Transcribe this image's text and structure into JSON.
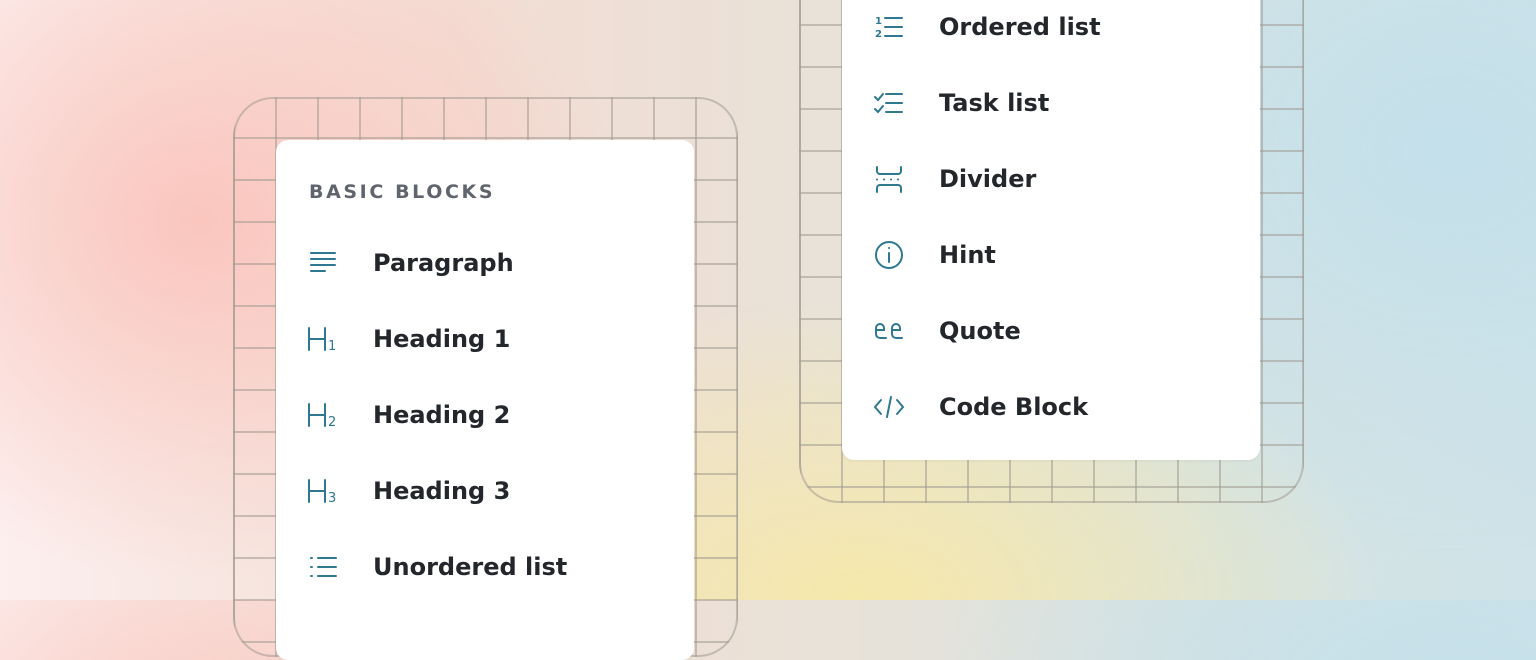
{
  "left_menu": {
    "section_title": "BASIC BLOCKS",
    "items": [
      {
        "label": "Paragraph",
        "icon": "paragraph-icon"
      },
      {
        "label": "Heading 1",
        "icon": "heading-1-icon"
      },
      {
        "label": "Heading 2",
        "icon": "heading-2-icon"
      },
      {
        "label": "Heading 3",
        "icon": "heading-3-icon"
      },
      {
        "label": "Unordered list",
        "icon": "unordered-list-icon"
      }
    ]
  },
  "right_menu": {
    "items": [
      {
        "label": "Ordered list",
        "icon": "ordered-list-icon"
      },
      {
        "label": "Task list",
        "icon": "task-list-icon"
      },
      {
        "label": "Divider",
        "icon": "divider-icon"
      },
      {
        "label": "Hint",
        "icon": "info-icon"
      },
      {
        "label": "Quote",
        "icon": "quote-icon"
      },
      {
        "label": "Code Block",
        "icon": "code-icon"
      }
    ]
  },
  "colors": {
    "icon": "#2f7890",
    "text": "#23262b",
    "section_title": "#60646c"
  }
}
